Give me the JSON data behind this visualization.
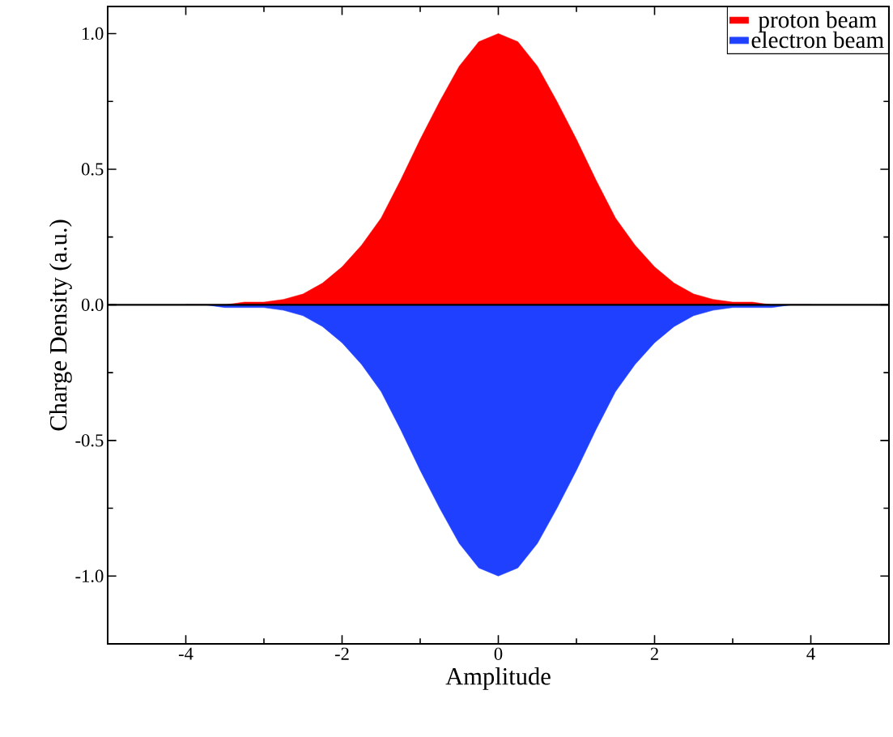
{
  "chart_data": {
    "type": "area",
    "xlabel": "Amplitude",
    "ylabel": "Charge Density (a.u.)",
    "x": [
      -4,
      -3.75,
      -3.5,
      -3.25,
      -3,
      -2.75,
      -2.5,
      -2.25,
      -2,
      -1.75,
      -1.5,
      -1.25,
      -1,
      -0.75,
      -0.5,
      -0.25,
      0,
      0.25,
      0.5,
      0.75,
      1,
      1.25,
      1.5,
      1.75,
      2,
      2.25,
      2.5,
      2.75,
      3,
      3.25,
      3.5,
      3.75,
      4
    ],
    "series": [
      {
        "name": "proton beam",
        "color": "#ff0000",
        "values": [
          0,
          0,
          0,
          0.01,
          0.01,
          0.02,
          0.04,
          0.08,
          0.14,
          0.22,
          0.32,
          0.46,
          0.61,
          0.75,
          0.88,
          0.97,
          1,
          0.97,
          0.88,
          0.75,
          0.61,
          0.46,
          0.32,
          0.22,
          0.14,
          0.08,
          0.04,
          0.02,
          0.01,
          0.01,
          0,
          0,
          0
        ]
      },
      {
        "name": "electron beam",
        "color": "#2040ff",
        "values": [
          0,
          0,
          -0.01,
          -0.01,
          -0.01,
          -0.02,
          -0.04,
          -0.08,
          -0.14,
          -0.22,
          -0.32,
          -0.46,
          -0.61,
          -0.75,
          -0.88,
          -0.97,
          -1,
          -0.97,
          -0.88,
          -0.75,
          -0.61,
          -0.46,
          -0.32,
          -0.22,
          -0.14,
          -0.08,
          -0.04,
          -0.02,
          -0.01,
          -0.01,
          -0.01,
          0,
          0
        ]
      }
    ],
    "xlim": [
      -5,
      5
    ],
    "xticks": [
      -4,
      -2,
      0,
      2,
      4
    ],
    "ylim": [
      -1.25,
      1.1
    ],
    "yticks": [
      {
        "value": -1,
        "label": "-1.0"
      },
      {
        "value": -0.5,
        "label": "-0.5"
      },
      {
        "value": 0,
        "label": "0.0"
      },
      {
        "value": 0.5,
        "label": "0.5"
      },
      {
        "value": 1,
        "label": "1.0"
      }
    ],
    "ref_lines": [
      {
        "axis": "y",
        "value": 0,
        "color": "#000000"
      }
    ],
    "legend": "top right",
    "grid": false
  }
}
